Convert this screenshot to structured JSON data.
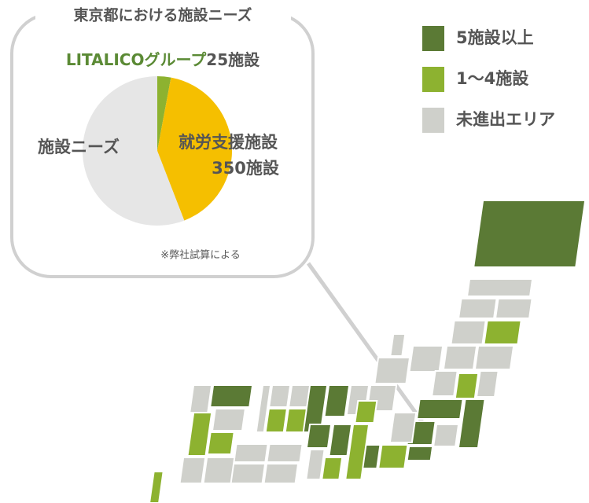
{
  "chart_data": {
    "type": "pie",
    "title": "東京都における施設ニーズ",
    "categories": [
      "LITALICOグループ",
      "就労支援施設",
      "施設ニーズ"
    ],
    "values": [
      25,
      350,
      475
    ],
    "value_labels": [
      "25施設",
      "350施設",
      null
    ],
    "colors": [
      "#8db230",
      "#f5bf00",
      "#e6e6e6"
    ],
    "note": "※弊社試算による",
    "legend": [
      {
        "label": "5施設以上",
        "color": "#5b7a35"
      },
      {
        "label": "1〜4施設",
        "color": "#8db230"
      },
      {
        "label": "未進出エリア",
        "color": "#cfd0cb"
      }
    ]
  }
}
